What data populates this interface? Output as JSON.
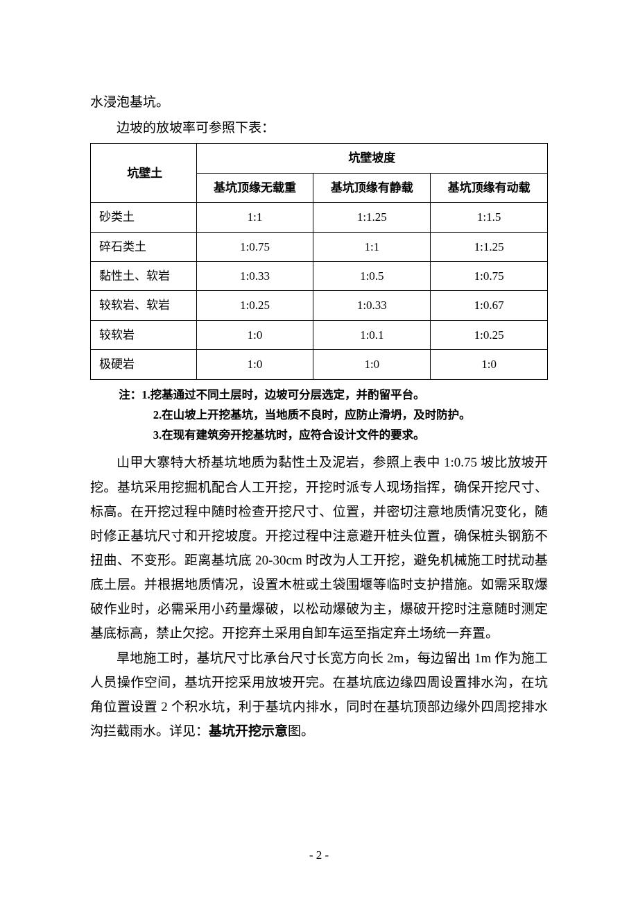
{
  "first_line": "水浸泡基坑。",
  "table_intro": "边坡的放坡率可参照下表：",
  "table": {
    "header_row1_col1": "坑壁土",
    "header_row1_col2": "坑壁坡度",
    "header_row2_col1": "基坑顶缘无载重",
    "header_row2_col2": "基坑顶缘有静载",
    "header_row2_col3": "基坑顶缘有动载",
    "rows": [
      {
        "label": "砂类土",
        "c1": "1:1",
        "c2": "1:1.25",
        "c3": "1:1.5"
      },
      {
        "label": "碎石类土",
        "c1": "1:0.75",
        "c2": "1:1",
        "c3": "1:1.25"
      },
      {
        "label": "黏性土、软岩",
        "c1": "1:0.33",
        "c2": "1:0.5",
        "c3": "1:0.75"
      },
      {
        "label": "较软岩、软岩",
        "c1": "1:0.25",
        "c2": "1:0.33",
        "c3": "1:0.67"
      },
      {
        "label": "较软岩",
        "c1": "1:0",
        "c2": "1:0.1",
        "c3": "1:0.25"
      },
      {
        "label": "极硬岩",
        "c1": "1:0",
        "c2": "1:0",
        "c3": "1:0"
      }
    ]
  },
  "notes": {
    "prefix": "注：",
    "n1": "1.挖基通过不同土层时，边坡可分层选定，并酌留平台。",
    "n2": "2.在山坡上开挖基坑，当地质不良时，应防止滑坍，及时防护。",
    "n3": "3.在现有建筑旁开挖基坑时，应符合设计文件的要求。"
  },
  "para1": "山甲大寨特大桥基坑地质为黏性土及泥岩，参照上表中 1:0.75 坡比放坡开挖。基坑采用挖掘机配合人工开挖，开挖时派专人现场指挥，确保开挖尺寸、标高。在开挖过程中随时检查开挖尺寸、位置，并密切注意地质情况变化，随时修正基坑尺寸和开挖坡度。开挖过程中注意避开桩头位置，确保桩头钢筋不扭曲、不变形。距离基坑底 20-30cm 时改为人工开挖，避免机械施工时扰动基底土层。并根据地质情况，设置木桩或土袋围堰等临时支护措施。如需采取爆破作业时，必需采用小药量爆破，以松动爆破为主，爆破开挖时注意随时测定基底标高，禁止欠挖。开挖弃土采用自卸车运至指定弃土场统一弃置。",
  "para2_part1": "旱地施工时，基坑尺寸比承台尺寸长宽方向长 2m，每边留出 1m 作为施工人员操作空间，基坑开挖采用放坡开完。在基坑底边缘四周设置排水沟，在坑角位置设置 2 个积水坑，利于基坑内排水，同时在基坑顶部边缘外四周挖排水沟拦截雨水。详见：",
  "para2_bold": "基坑开挖示意",
  "para2_part2": "图。",
  "page_number": "- 2 -"
}
